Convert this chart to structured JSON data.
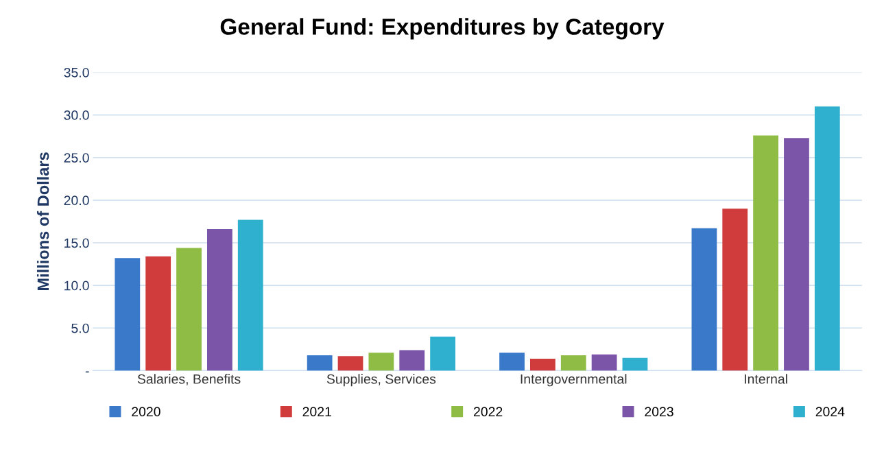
{
  "chart_data": {
    "type": "bar",
    "title": "General Fund: Expenditures by Category",
    "ylabel": "Millions of Dollars",
    "categories": [
      "Salaries, Benefits",
      "Supplies, Services",
      "Intergovernmental",
      "Internal"
    ],
    "series": [
      {
        "name": "2020",
        "color": "#3a78c9",
        "values": [
          13.2,
          1.8,
          2.1,
          16.7
        ]
      },
      {
        "name": "2021",
        "color": "#d03b3b",
        "values": [
          13.4,
          1.7,
          1.4,
          19.0
        ]
      },
      {
        "name": "2022",
        "color": "#8fbc45",
        "values": [
          14.4,
          2.1,
          1.8,
          27.6
        ]
      },
      {
        "name": "2023",
        "color": "#7a55a8",
        "values": [
          16.6,
          2.4,
          1.9,
          27.3
        ]
      },
      {
        "name": "2024",
        "color": "#2fb0cf",
        "values": [
          17.7,
          4.0,
          1.5,
          31.0
        ]
      }
    ],
    "ylim": [
      0,
      35
    ],
    "yticks": [
      {
        "value": 0,
        "label": "-"
      },
      {
        "value": 5,
        "label": "5.0"
      },
      {
        "value": 10,
        "label": "10.0"
      },
      {
        "value": 15,
        "label": "15.0"
      },
      {
        "value": 20,
        "label": "20.0"
      },
      {
        "value": 25,
        "label": "25.0"
      },
      {
        "value": 30,
        "label": "30.0"
      },
      {
        "value": 35,
        "label": "35.0"
      }
    ],
    "grid": "y",
    "legend": "bottom"
  }
}
